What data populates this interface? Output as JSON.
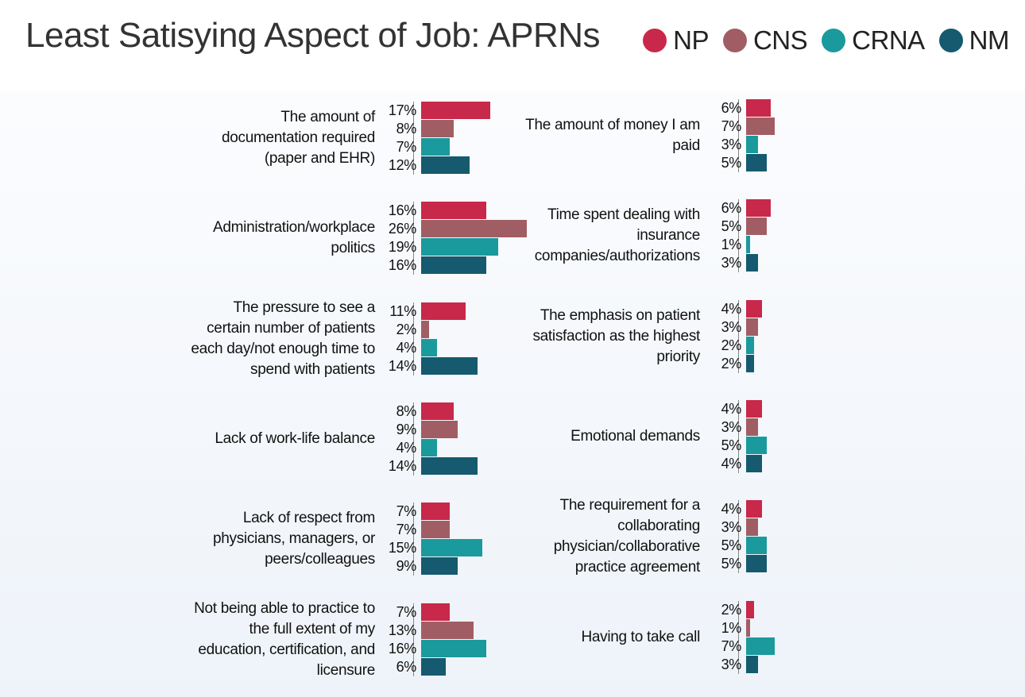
{
  "chart_data": {
    "type": "bar",
    "title": "Least Satisying Aspect of Job: APRNs",
    "categories": [
      "The amount of documentation required (paper and EHR)",
      "Administration/workplace politics",
      "The pressure to see a certain number of patients each day/not enough time to spend with patients",
      "Lack of work-life balance",
      "Lack of respect from physicians, managers, or peers/colleagues",
      "Not being able to practice to the full extent of my education, certification, and licensure",
      "The amount of money I am paid",
      "Time spent dealing with insurance companies/authorizations",
      "The emphasis on patient satisfaction as the highest priority",
      "Emotional demands",
      "The requirement for a collaborating physician/collaborative practice agreement",
      "Having to take call"
    ],
    "series": [
      {
        "name": "NP",
        "color": "#c8284a",
        "values": [
          17,
          16,
          11,
          8,
          7,
          7,
          6,
          6,
          4,
          4,
          4,
          2
        ],
        "value_labels": [
          "17%",
          "16%",
          "11%",
          "8%",
          "7%",
          "7%",
          "6%",
          "6%",
          "4%",
          "4%",
          "4%",
          "2%"
        ]
      },
      {
        "name": "CNS",
        "color": "#a05e64",
        "values": [
          8,
          26,
          2,
          9,
          7,
          13,
          7,
          5,
          3,
          3,
          3,
          1
        ],
        "value_labels": [
          "8%",
          "26%",
          "2%",
          "9%",
          "7%",
          "13%",
          "7%",
          "5%",
          "3%",
          "3%",
          "3%",
          "1%"
        ]
      },
      {
        "name": "CRNA",
        "color": "#1a9a9c",
        "values": [
          7,
          19,
          4,
          4,
          15,
          16,
          3,
          1,
          2,
          5,
          5,
          7
        ],
        "value_labels": [
          "7%",
          "19%",
          "4%",
          "4%",
          "15%",
          "16%",
          "3%",
          "1%",
          "2%",
          "5%",
          "5%",
          "7%"
        ]
      },
      {
        "name": "NM",
        "color": "#155a6e",
        "values": [
          12,
          16,
          14,
          14,
          9,
          6,
          5,
          3,
          2,
          4,
          5,
          3
        ],
        "value_labels": [
          "12%",
          "16%",
          "14%",
          "14%",
          "9%",
          "6%",
          "5%",
          "3%",
          "2%",
          "4%",
          "5%",
          "3%"
        ]
      }
    ]
  }
}
